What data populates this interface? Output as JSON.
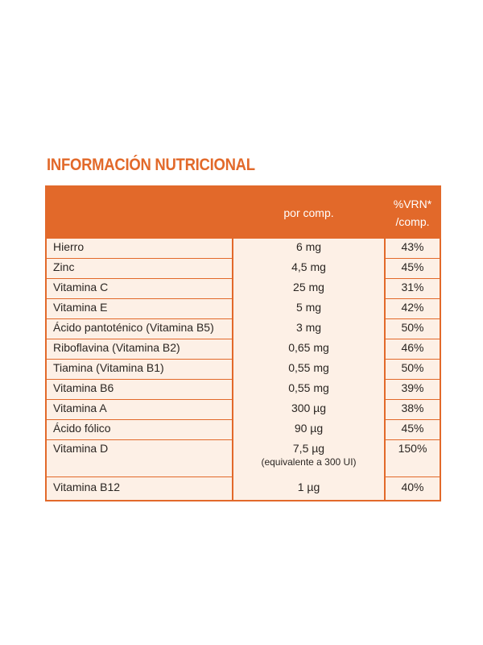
{
  "title": "INFORMACIÓN NUTRICIONAL",
  "colors": {
    "accent": "#e2692a",
    "row_bg": "#fdf0e6",
    "text": "#2a2522"
  },
  "header": {
    "col1": "",
    "col2": "por comp.",
    "col3_line1": "%VRN*",
    "col3_line2": "/comp."
  },
  "rows": [
    {
      "name": "Hierro",
      "amount": "6 mg",
      "vrn": "43%"
    },
    {
      "name": "Zinc",
      "amount": "4,5 mg",
      "vrn": "45%"
    },
    {
      "name": "Vitamina C",
      "amount": "25 mg",
      "vrn": "31%"
    },
    {
      "name": "Vitamina E",
      "amount": "5 mg",
      "vrn": "42%"
    },
    {
      "name": "Ácido pantoténico (Vitamina B5)",
      "amount": "3 mg",
      "vrn": "50%"
    },
    {
      "name": "Riboflavina (Vitamina B2)",
      "amount": "0,65 mg",
      "vrn": "46%"
    },
    {
      "name": "Tiamina (Vitamina B1)",
      "amount": "0,55 mg",
      "vrn": "50%"
    },
    {
      "name": "Vitamina B6",
      "amount": "0,55 mg",
      "vrn": "39%"
    },
    {
      "name": "Vitamina A",
      "amount": "300 µg",
      "vrn": "38%"
    },
    {
      "name": "Ácido fólico",
      "amount": "90 µg",
      "vrn": "45%"
    },
    {
      "name": "Vitamina D",
      "amount": "7,5 µg",
      "amount_note": "(equivalente a 300 UI)",
      "vrn": "150%"
    },
    {
      "name": "Vitamina B12",
      "amount": "1 µg",
      "vrn": "40%"
    }
  ]
}
